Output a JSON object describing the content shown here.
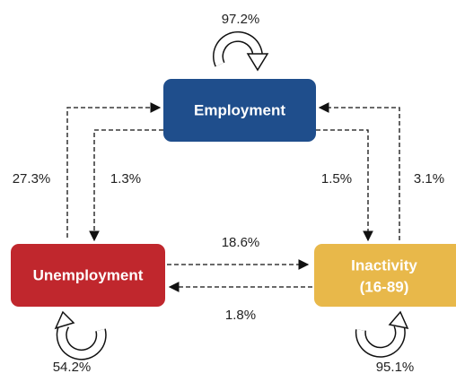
{
  "nodes": [
    {
      "label": "Employment"
    },
    {
      "label": "Unemployment"
    },
    {
      "lines": [
        "Inactivity",
        "(16-89)"
      ]
    }
  ],
  "edges": [
    {
      "label": "97.2%"
    },
    {
      "label": "27.3%"
    },
    {
      "label": "1.3%"
    },
    {
      "label": "1.5%"
    },
    {
      "label": "3.1%"
    },
    {
      "label": "18.6%"
    },
    {
      "label": "1.8%"
    },
    {
      "label": "54.2%"
    },
    {
      "label": "95.1%"
    }
  ]
}
